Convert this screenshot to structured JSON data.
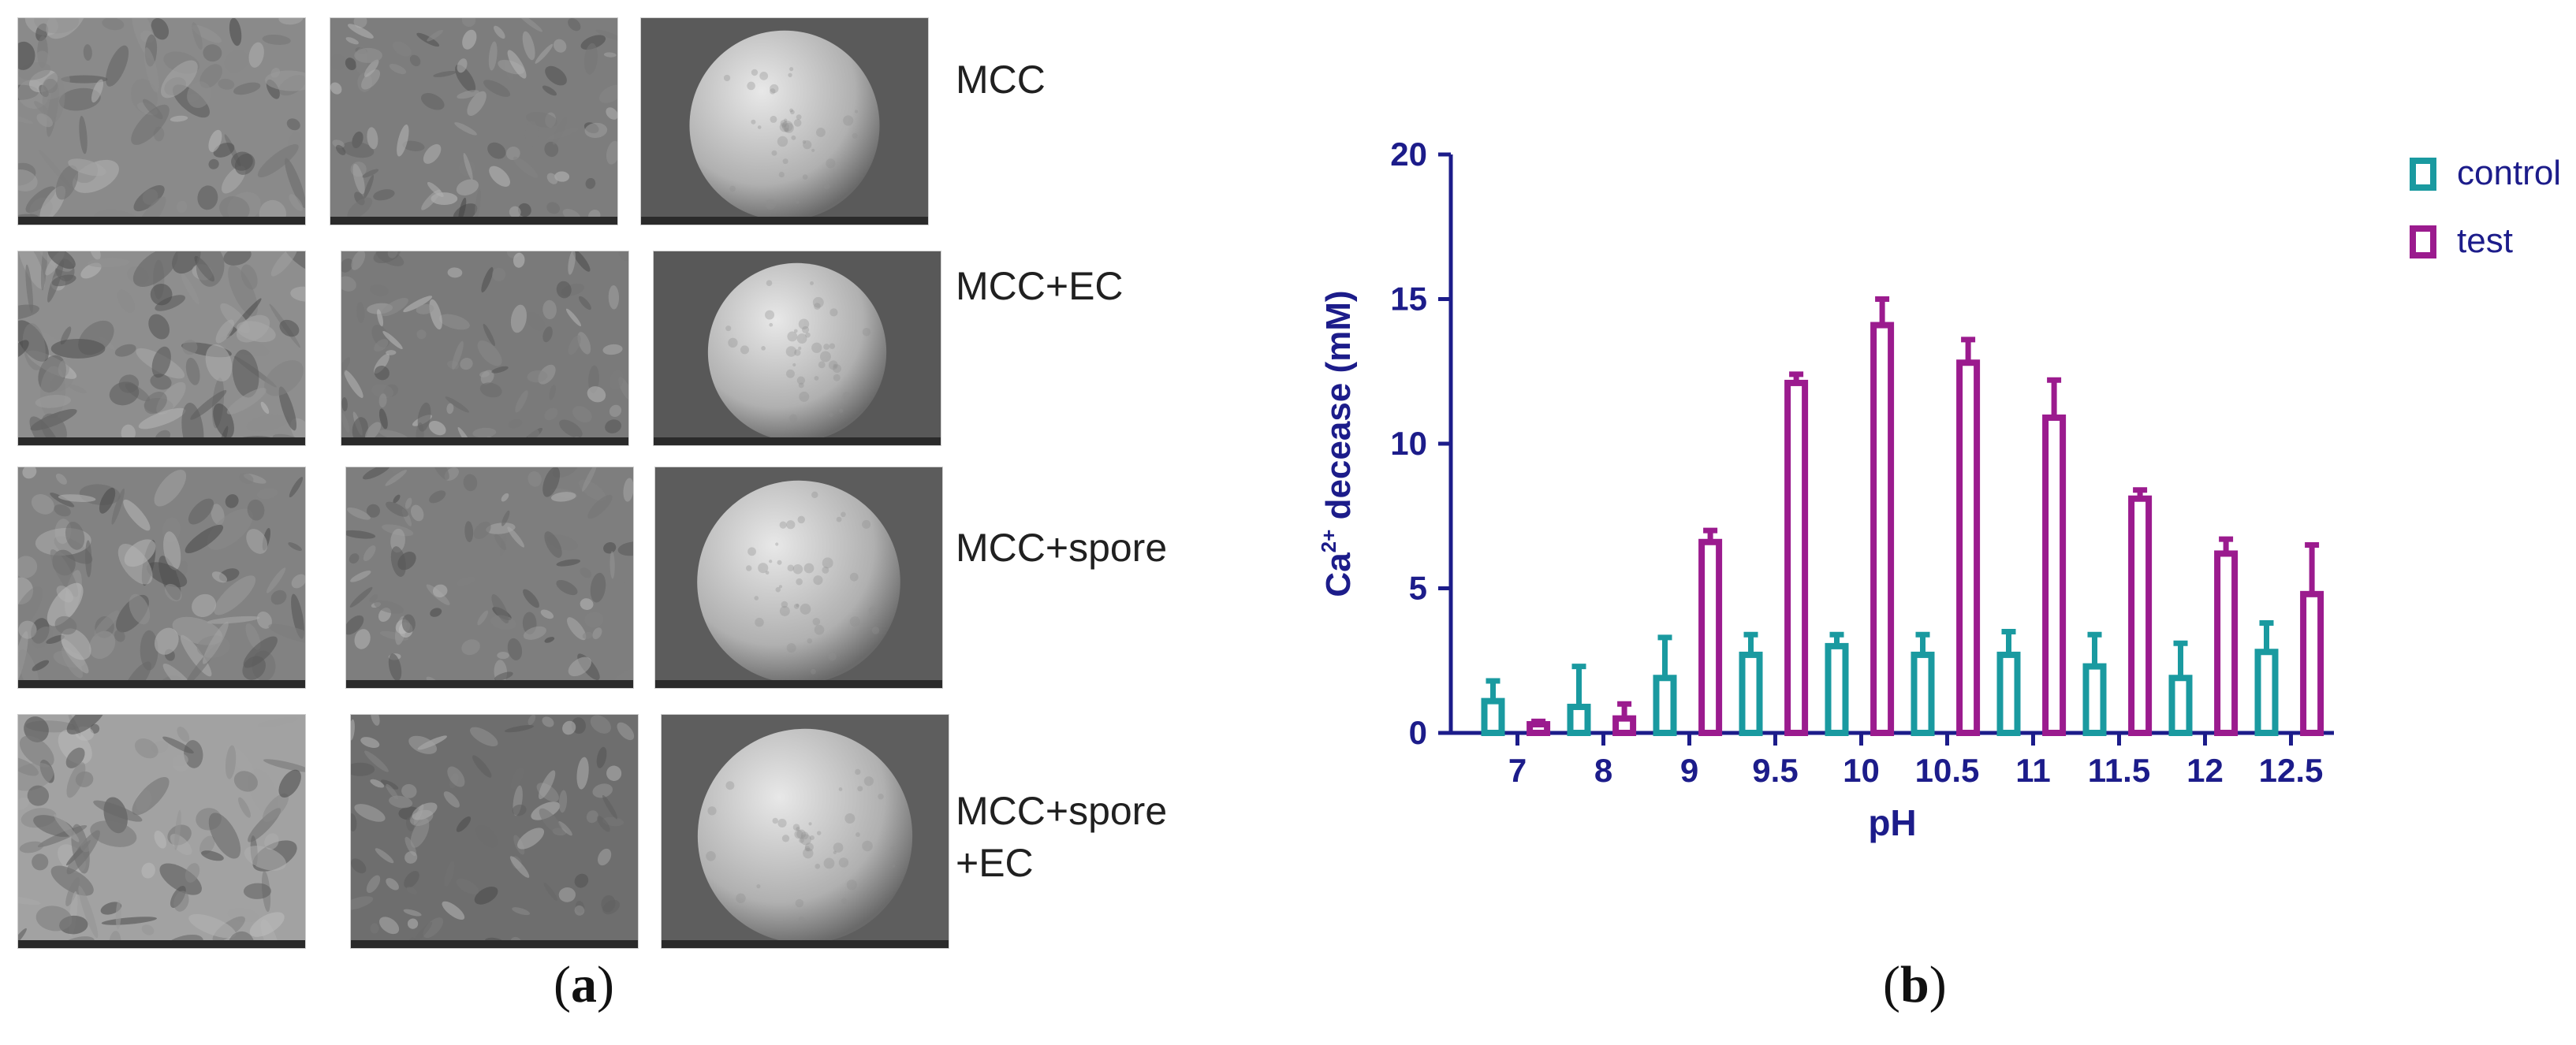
{
  "figure": {
    "panel_a": {
      "label_open": "(",
      "label_letter": "a",
      "label_close": ")",
      "rows": [
        {
          "label_lines": [
            "MCC"
          ]
        },
        {
          "label_lines": [
            "MCC+EC"
          ]
        },
        {
          "label_lines": [
            "MCC+spore"
          ]
        },
        {
          "label_lines": [
            "MCC+spore",
            "+EC"
          ]
        }
      ]
    },
    "panel_b": {
      "label_open": "(",
      "label_letter": "b",
      "label_close": ")"
    }
  },
  "colors": {
    "control": "#1a9aa0",
    "test": "#9b1b8e",
    "axis": "#1c1c8a"
  },
  "chart_data": {
    "type": "bar",
    "title": "",
    "xlabel": "pH",
    "ylabel_main": "Ca",
    "ylabel_sup": "2+",
    "ylabel_rest": " decease (mM)",
    "categories": [
      "7",
      "8",
      "9",
      "9.5",
      "10",
      "10.5",
      "11",
      "11.5",
      "12",
      "12.5"
    ],
    "ylim": [
      0,
      20
    ],
    "yticks": [
      "0",
      "5",
      "10",
      "15",
      "20"
    ],
    "legend_position": "top-right",
    "series": [
      {
        "name": "control",
        "values": [
          1.1,
          0.9,
          1.9,
          2.7,
          3.0,
          2.7,
          2.7,
          2.3,
          1.9,
          2.8
        ],
        "errors": [
          0.7,
          1.4,
          1.4,
          0.7,
          0.4,
          0.7,
          0.8,
          1.1,
          1.2,
          1.0
        ]
      },
      {
        "name": "test",
        "values": [
          0.3,
          0.5,
          6.6,
          12.1,
          14.1,
          12.8,
          10.9,
          8.1,
          6.2,
          4.8
        ],
        "errors": [
          0.1,
          0.5,
          0.4,
          0.3,
          0.9,
          0.8,
          1.3,
          0.3,
          0.5,
          1.7
        ]
      }
    ]
  }
}
